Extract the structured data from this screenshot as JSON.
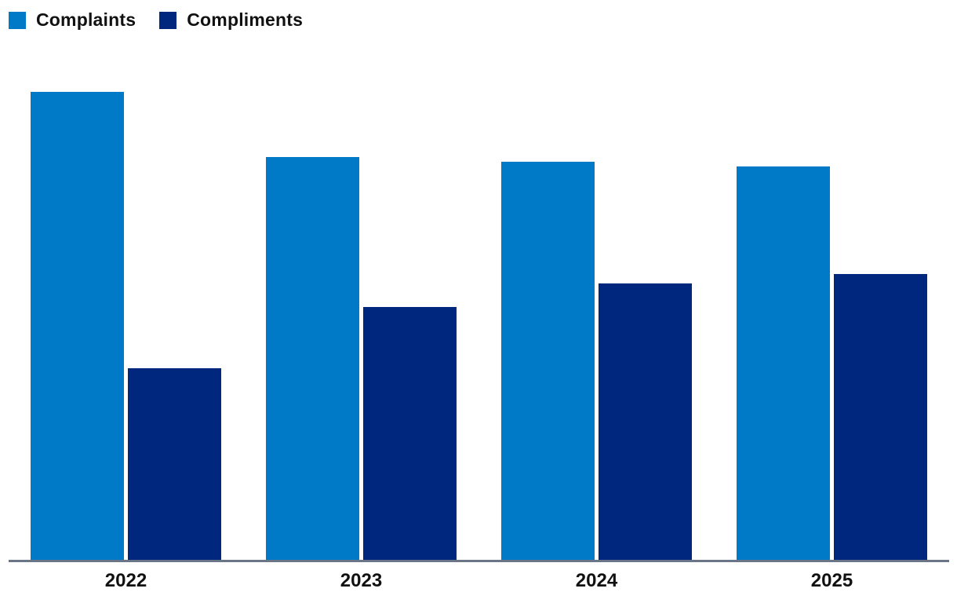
{
  "legend": {
    "items": [
      {
        "label": "Complaints",
        "color": "#0079C7"
      },
      {
        "label": "Compliments",
        "color": "#00277E"
      }
    ]
  },
  "chart_data": {
    "type": "bar",
    "title": "",
    "xlabel": "",
    "ylabel": "",
    "categories": [
      "2022",
      "2023",
      "2024",
      "2025"
    ],
    "series": [
      {
        "name": "Complaints",
        "color": "#0079C7",
        "values": [
          100,
          86,
          85,
          84
        ]
      },
      {
        "name": "Compliments",
        "color": "#00277E",
        "values": [
          41,
          54,
          59,
          61
        ]
      }
    ],
    "ylim": [
      0,
      100
    ],
    "y_axis_shown": false,
    "grid": false,
    "legend_position": "top-left",
    "axis_color": "#6A7587",
    "tick_label_color": "#111111",
    "note": "No y-axis or value labels shown; values normalized so tallest bar = 100"
  }
}
